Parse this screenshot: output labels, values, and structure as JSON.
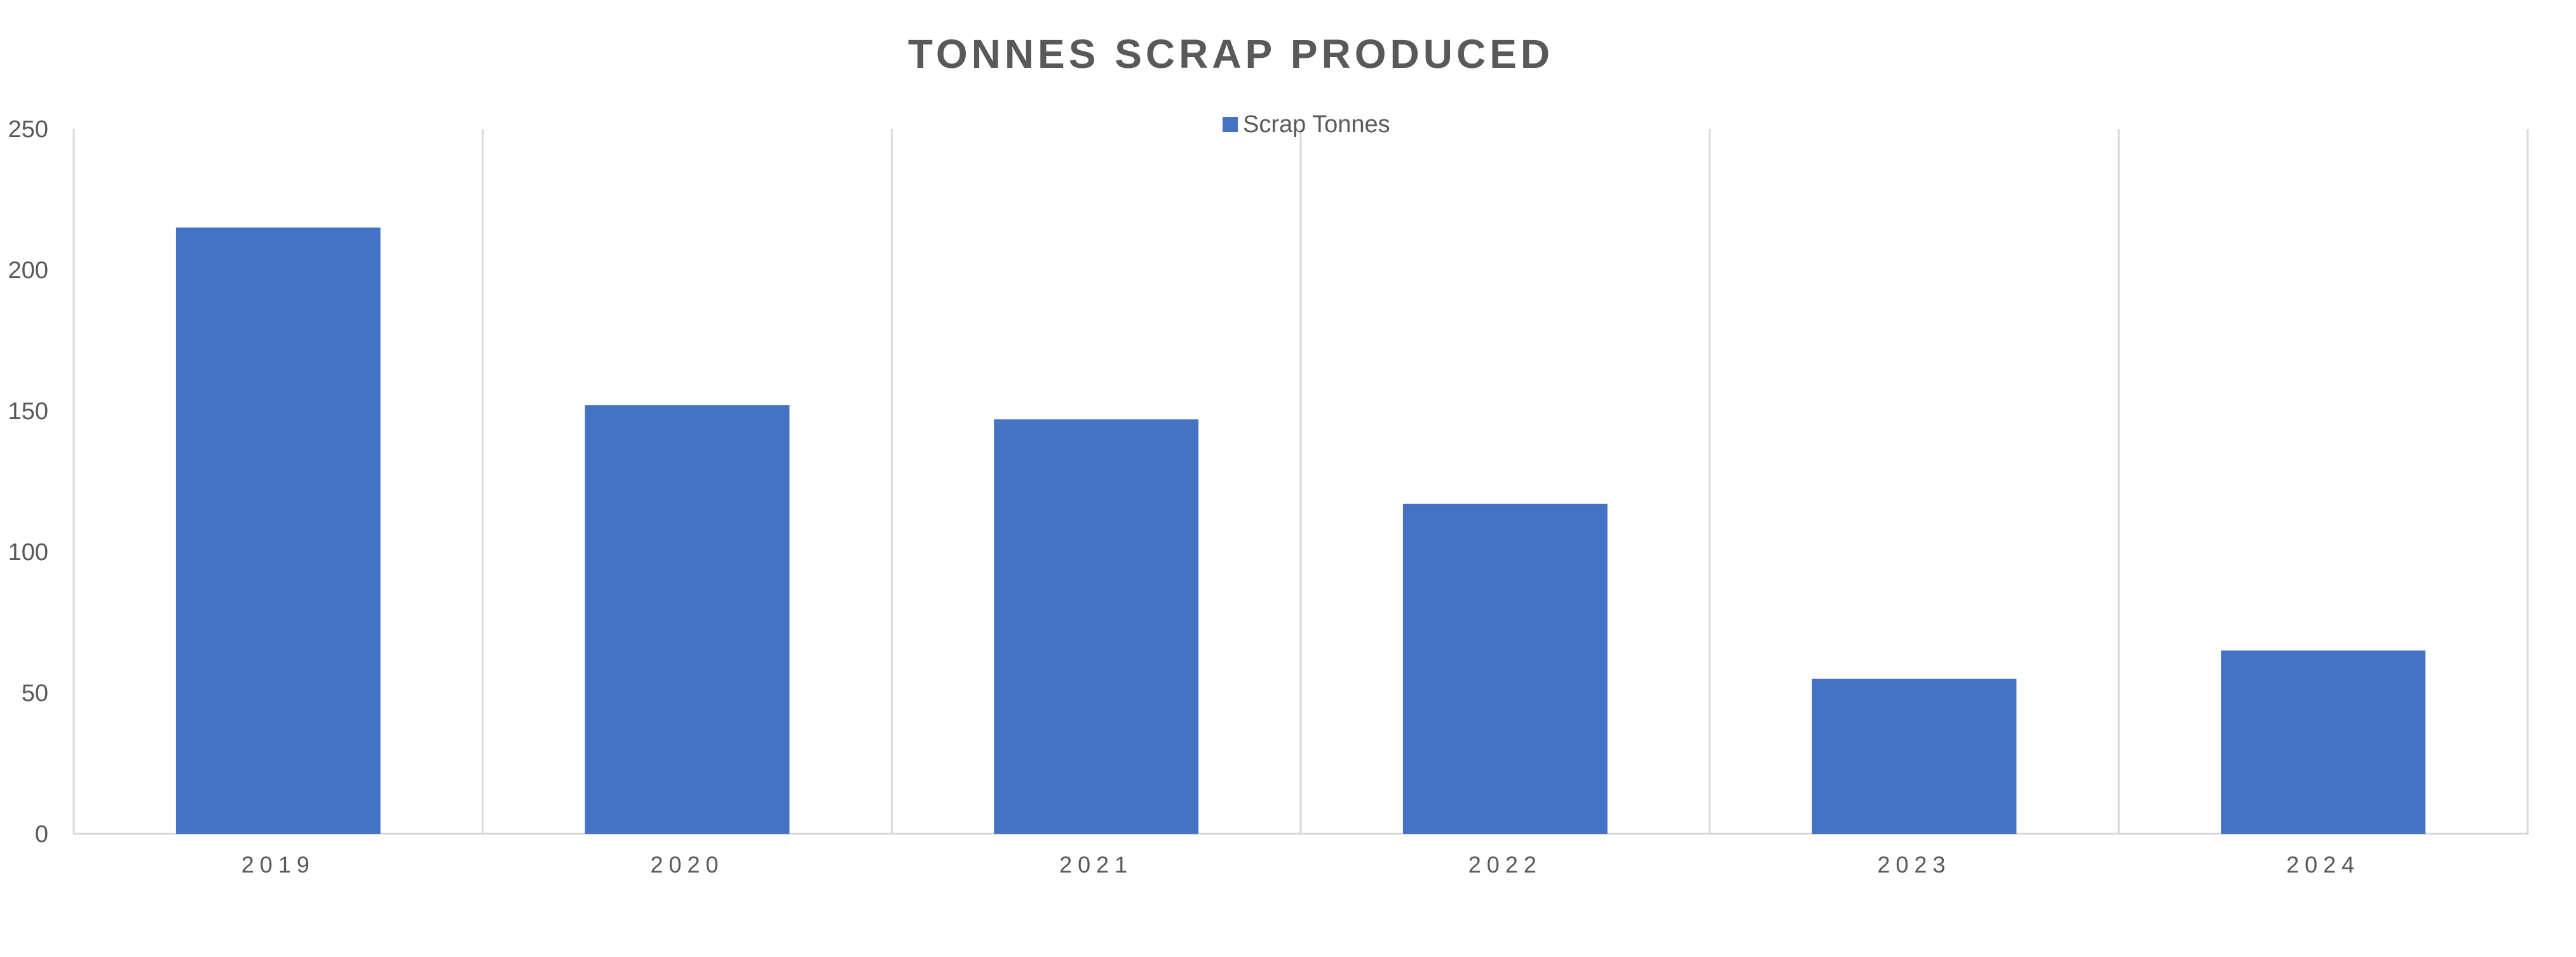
{
  "chart_data": {
    "type": "bar",
    "title": "TONNES SCRAP PRODUCED",
    "categories": [
      "2019",
      "2020",
      "2021",
      "2022",
      "2023",
      "2024"
    ],
    "series": [
      {
        "name": "Scrap Tonnes",
        "values": [
          215,
          152,
          147,
          117,
          55,
          65
        ],
        "color": "#4472c4"
      }
    ],
    "ylim": [
      0,
      250
    ],
    "yticks": [
      0,
      50,
      100,
      150,
      200,
      250
    ],
    "grid": "vertical",
    "legend": "top-center"
  }
}
